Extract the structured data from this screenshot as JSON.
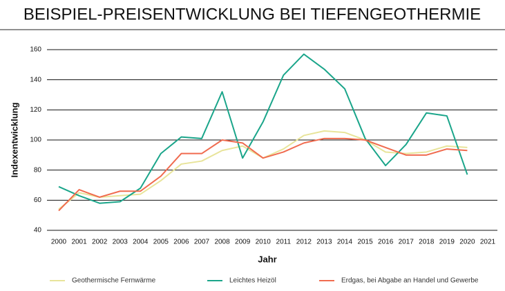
{
  "chart_data": {
    "type": "line",
    "title": "BEISPIEL-PREISENTWICKLUNG BEI TIEFENGEOTHERMIE",
    "x_label": "Jahr",
    "y_label": "Indexentwicklung",
    "x": [
      2000,
      2001,
      2002,
      2003,
      2004,
      2005,
      2006,
      2007,
      2008,
      2009,
      2010,
      2011,
      2012,
      2013,
      2014,
      2015,
      2016,
      2017,
      2018,
      2019,
      2020
    ],
    "xlim": [
      2000,
      2021
    ],
    "xticks": [
      2000,
      2001,
      2002,
      2003,
      2004,
      2005,
      2006,
      2007,
      2008,
      2009,
      2010,
      2011,
      2012,
      2013,
      2014,
      2015,
      2016,
      2017,
      2018,
      2019,
      2020,
      2021
    ],
    "ylim": [
      40,
      160
    ],
    "yticks": [
      40,
      60,
      80,
      100,
      120,
      140,
      160
    ],
    "grid": true,
    "legend": "bottom",
    "series": [
      {
        "name": "Geothermische Fernwärme",
        "color": "#e8e49a",
        "values": [
          54,
          65,
          62,
          63,
          64,
          73,
          84,
          86,
          93,
          96,
          88,
          94,
          103,
          106,
          105,
          100,
          92,
          91,
          92,
          96,
          95
        ]
      },
      {
        "name": "Leichtes Heizöl",
        "color": "#1aa58a",
        "values": [
          69,
          63,
          58,
          59,
          68,
          91,
          102,
          101,
          132,
          88,
          112,
          143,
          157,
          147,
          134,
          101,
          83,
          97,
          118,
          116,
          77
        ]
      },
      {
        "name": "Erdgas, bei Abgabe an Handel und Gewerbe",
        "color": "#f06b4f",
        "values": [
          53,
          67,
          62,
          66,
          66,
          76,
          91,
          91,
          100,
          98,
          88,
          92,
          98,
          101,
          101,
          100,
          95,
          90,
          90,
          94,
          93
        ]
      }
    ]
  }
}
